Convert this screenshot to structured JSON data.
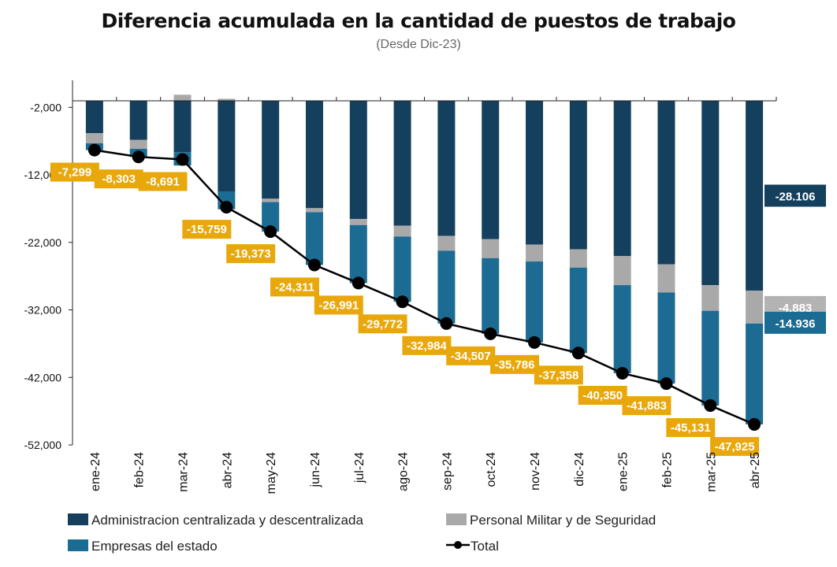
{
  "chart_data": {
    "type": "bar",
    "stacked": true,
    "title": "Diferencia acumulada en la cantidad de puestos de trabajo",
    "subtitle": "(Desde Dic-23)",
    "categories": [
      "ene-24",
      "feb-24",
      "mar-24",
      "abr-24",
      "may-24",
      "jun-24",
      "jul-24",
      "ago-24",
      "sep-24",
      "oct-24",
      "nov-24",
      "dic-24",
      "ene-25",
      "feb-25",
      "mar-25",
      "abr-25"
    ],
    "ylim": [
      -52000,
      2000
    ],
    "yticks": [
      -2000,
      -12000,
      -22000,
      -32000,
      -42000,
      -52000
    ],
    "ytick_labels": [
      "-2,000",
      "-12,000",
      "-22,000",
      "-32,000",
      "-42,000",
      "-52,000"
    ],
    "series": [
      {
        "name": "Administracion centralizada y descentralizada",
        "color": "#14405e",
        "values": [
          -4800,
          -5800,
          -7600,
          -13500,
          -14500,
          -15900,
          -17500,
          -18500,
          -20000,
          -20500,
          -21300,
          -22000,
          -23000,
          -24200,
          -27300,
          -28106
        ]
      },
      {
        "name": "Personal Militar y de Seguridad",
        "color": "#a9a9a9",
        "values": [
          -1500,
          -1300,
          900,
          300,
          -500,
          -600,
          -900,
          -1600,
          -2200,
          -2800,
          -2500,
          -2700,
          -4300,
          -4200,
          -3800,
          -4883
        ]
      },
      {
        "name": "Empresas del estado",
        "color": "#1c6b93",
        "values": [
          -999,
          -1203,
          -1991,
          -2559,
          -4373,
          -7811,
          -8591,
          -9672,
          -10784,
          -11207,
          -11986,
          -12658,
          -13050,
          -13483,
          -14031,
          -14936
        ]
      }
    ],
    "total": {
      "name": "Total",
      "color": "#000000",
      "values": [
        -7299,
        -8303,
        -8691,
        -15759,
        -19373,
        -24311,
        -26991,
        -29772,
        -32984,
        -34507,
        -35786,
        -37358,
        -40350,
        -41883,
        -45131,
        -47925
      ],
      "labels": [
        "-7,299",
        "-8,303",
        "-8,691",
        "-15,759",
        "-19,373",
        "-24,311",
        "-26,991",
        "-29,772",
        "-32,984",
        "-34,507",
        "-35,786",
        "-37,358",
        "-40,350",
        "-41,883",
        "-45,131",
        "-47,925"
      ]
    },
    "end_labels": [
      "-28.106",
      "-4.883",
      "-14.936"
    ],
    "legend_placement": "bottom",
    "grid": false
  },
  "legend": {
    "admin": "Administracion centralizada y descentralizada",
    "militar": "Personal Militar y de Seguridad",
    "empresas": "Empresas del estado",
    "total": "Total"
  }
}
